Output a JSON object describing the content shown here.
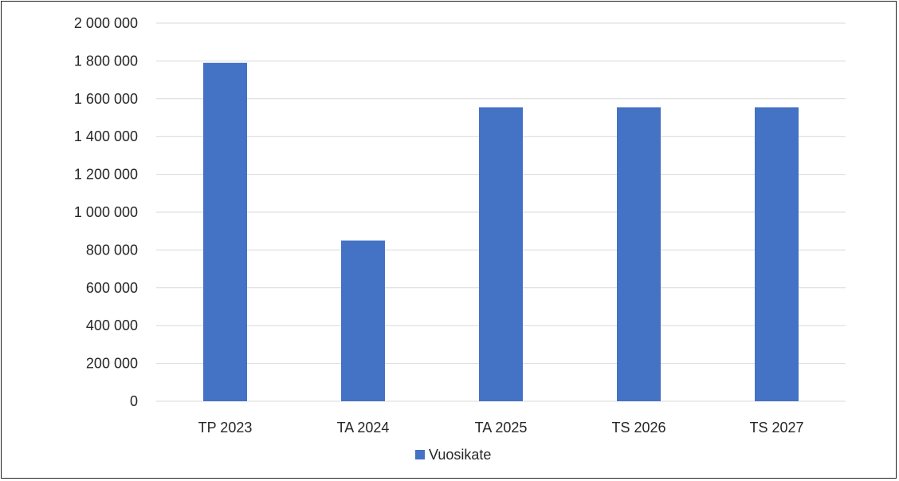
{
  "chart_data": {
    "type": "bar",
    "title": "",
    "xlabel": "",
    "ylabel": "",
    "categories": [
      "TP 2023",
      "TA 2024",
      "TA 2025",
      "TS 2026",
      "TS 2027"
    ],
    "series": [
      {
        "name": "Vuosikate",
        "color": "#4472C4",
        "values": [
          1790000,
          850000,
          1555000,
          1555000,
          1555000
        ]
      }
    ],
    "ylim": [
      0,
      2000000
    ],
    "yticks": [
      0,
      200000,
      400000,
      600000,
      800000,
      1000000,
      1200000,
      1400000,
      1600000,
      1800000,
      2000000
    ],
    "ytick_labels": [
      "0",
      "200 000",
      "400 000",
      "600 000",
      "800 000",
      "1 000 000",
      "1 200 000",
      "1 400 000",
      "1 600 000",
      "1 800 000",
      "2 000 000"
    ],
    "grid": true,
    "gridline_color": "#D9D9D9",
    "legend": "bottom-center"
  }
}
